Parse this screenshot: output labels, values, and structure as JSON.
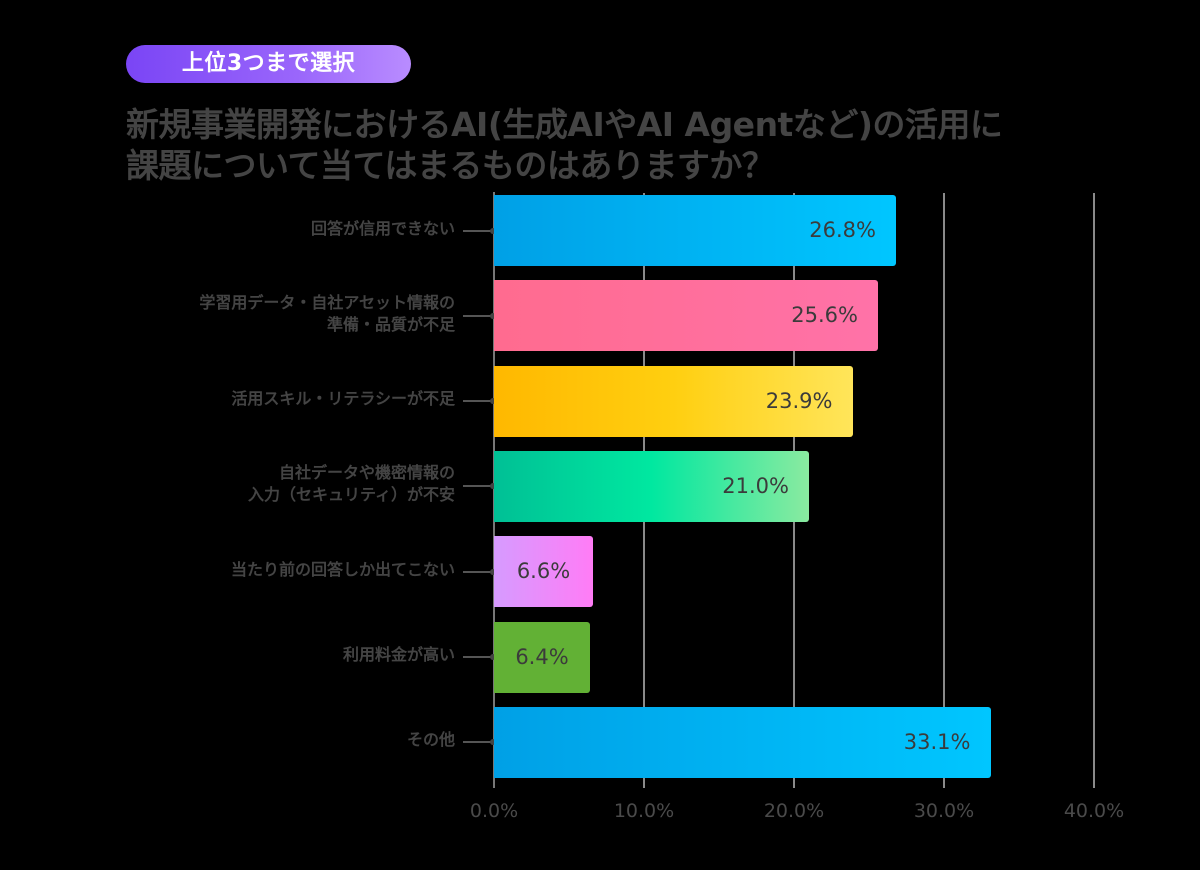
{
  "badge": {
    "label": "上位3つまで選択"
  },
  "title": {
    "line1": "新規事業開発におけるAI(生成AIやAI Agentなど)の活用に",
    "line2": "課題について当てはまるものはありますか？"
  },
  "colors": {
    "background": "#000000",
    "badge_start": "#7a45f5",
    "badge_end": "#b98cff",
    "title_text": "#444444",
    "gridline": "#8a8a8a"
  },
  "axis": {
    "ticks": [
      "0.0%",
      "10.0%",
      "20.0%",
      "30.0%",
      "40.0%"
    ]
  },
  "bars": [
    {
      "label_lines": [
        "回答が信用できない"
      ],
      "value": 26.8,
      "value_label": "26.8%",
      "gradient": [
        "#00a0e6",
        "#00c6ff"
      ]
    },
    {
      "label_lines": [
        "学習用データ・自社アセット情報の",
        "準備・品質が不足"
      ],
      "value": 25.6,
      "value_label": "25.6%",
      "gradient": [
        "#ff6b8f",
        "#ff72a8"
      ]
    },
    {
      "label_lines": [
        "活用スキル・リテラシーが不足"
      ],
      "value": 23.9,
      "value_label": "23.9%",
      "gradient": [
        "#ffb800",
        "#ffcf10",
        "#ffe55a"
      ]
    },
    {
      "label_lines": [
        "自社データや機密情報の",
        "入力（セキュリティ）が不安"
      ],
      "value": 21.0,
      "value_label": "21.0%",
      "gradient": [
        "#00c095",
        "#00e8a0",
        "#8aeaa0"
      ]
    },
    {
      "label_lines": [
        "当たり前の回答しか出てこない"
      ],
      "value": 6.6,
      "value_label": "6.6%",
      "gradient": [
        "#d69bff",
        "#ff7cf6"
      ]
    },
    {
      "label_lines": [
        "利用料金が高い"
      ],
      "value": 6.4,
      "value_label": "6.4%",
      "gradient": [
        "#62b135",
        "#62b135"
      ]
    },
    {
      "label_lines": [
        "その他"
      ],
      "value": 33.1,
      "value_label": "33.1%",
      "gradient": [
        "#00a0e6",
        "#00c6ff"
      ]
    }
  ],
  "chart_data": {
    "type": "bar",
    "orientation": "horizontal",
    "title": "新規事業開発におけるAI(生成AIやAI Agentなど)の活用に課題について当てはまるものはありますか？",
    "subtitle": "上位3つまで選択",
    "categories": [
      "回答が信用できない",
      "学習用データ・自社アセット情報の準備・品質が不足",
      "活用スキル・リテラシーが不足",
      "自社データや機密情報の入力（セキュリティ）が不安",
      "当たり前の回答しか出てこない",
      "利用料金が高い",
      "その他"
    ],
    "values": [
      26.8,
      25.6,
      23.9,
      21.0,
      6.6,
      6.4,
      33.1
    ],
    "xlabel": "",
    "ylabel": "",
    "xlim": [
      0,
      40
    ],
    "xticks": [
      "0.0%",
      "10.0%",
      "20.0%",
      "30.0%",
      "40.0%"
    ],
    "grid": true,
    "legend": null,
    "data_labels": true
  }
}
